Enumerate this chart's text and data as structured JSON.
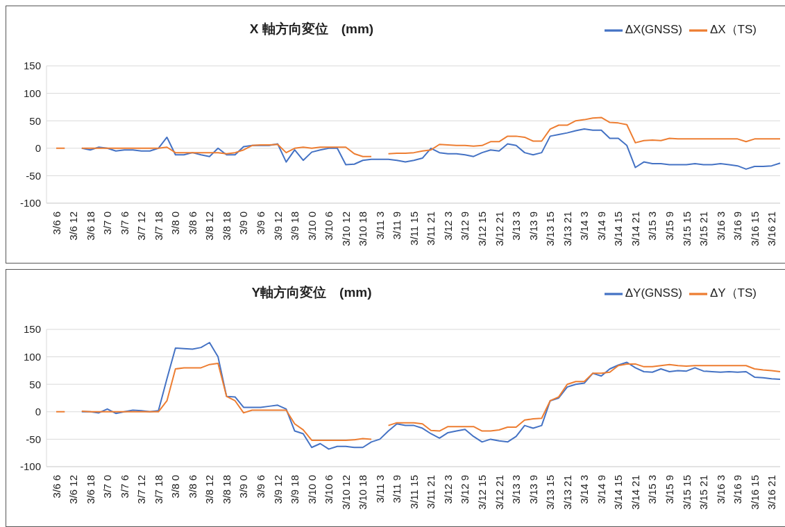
{
  "chart_data": [
    {
      "type": "line",
      "title": "X 軸方向変位　(mm)",
      "legend": "top right",
      "grid": "y",
      "marker": "none",
      "line_style": "solid",
      "categories": [
        "3/6 6",
        null,
        "3/6 12",
        null,
        "3/6 18",
        null,
        "3/7 0",
        null,
        "3/7 6",
        null,
        "3/7 12",
        null,
        "3/7 18",
        null,
        "3/8 0",
        null,
        "3/8 6",
        null,
        "3/8 12",
        null,
        "3/8 18",
        null,
        "3/9 0",
        null,
        "3/9 6",
        null,
        "3/9 12",
        null,
        "3/9 18",
        null,
        "3/10 0",
        null,
        "3/10 6",
        null,
        "3/10 12",
        null,
        "3/10 18",
        null,
        "3/11 3",
        null,
        "3/11 9",
        null,
        "3/11 15",
        null,
        "3/11 21",
        null,
        "3/12 3",
        null,
        "3/12 9",
        null,
        "3/12 15",
        null,
        "3/12 21",
        null,
        "3/13 3",
        null,
        "3/13 9",
        null,
        "3/13 15",
        null,
        "3/13 21",
        null,
        "3/14 3",
        null,
        "3/14 9",
        null,
        "3/14 15",
        null,
        "3/14 21",
        null,
        "3/15 3",
        null,
        "3/15 9",
        null,
        "3/15 15",
        null,
        "3/15 21",
        null,
        "3/16 3",
        null,
        "3/16 9",
        null,
        "3/16 15",
        null,
        "3/16 21",
        null
      ],
      "ylim": [
        -100,
        150
      ],
      "yticks": [
        -100,
        -50,
        0,
        50,
        100,
        150
      ],
      "series": [
        {
          "name": "ΔX(GNSS)",
          "color": "#4472c4",
          "values": [
            null,
            null,
            null,
            0,
            -3,
            2,
            0,
            -5,
            -3,
            -3,
            -5,
            -5,
            0,
            20,
            -12,
            -12,
            -8,
            -12,
            -15,
            0,
            -12,
            -12,
            3,
            5,
            5,
            5,
            8,
            -25,
            -3,
            -22,
            -7,
            -3,
            0,
            0,
            -30,
            -29,
            -22,
            -20,
            -20,
            -20,
            -22,
            -25,
            -22,
            -18,
            0,
            -8,
            -10,
            -10,
            -12,
            -15,
            -8,
            -3,
            -5,
            8,
            5,
            -8,
            -12,
            -8,
            22,
            25,
            28,
            32,
            35,
            33,
            33,
            18,
            18,
            5,
            -35,
            -25,
            -28,
            -28,
            -30,
            -30,
            -30,
            -28,
            -30,
            -30,
            -28,
            -30,
            -32,
            -38,
            -33,
            -33,
            -32,
            -27
          ]
        },
        {
          "name": "ΔX（TS)",
          "color": "#ed7d31",
          "values": [
            0,
            0,
            null,
            0,
            0,
            0,
            0,
            0,
            0,
            0,
            0,
            0,
            0,
            2,
            -8,
            -8,
            -8,
            -8,
            -8,
            -8,
            -10,
            -8,
            -3,
            5,
            6,
            6,
            7,
            -8,
            0,
            2,
            0,
            2,
            2,
            2,
            2,
            -10,
            -15,
            -15,
            null,
            -10,
            -9,
            -9,
            -8,
            -5,
            -3,
            7,
            6,
            5,
            5,
            4,
            5,
            12,
            12,
            22,
            22,
            20,
            13,
            13,
            35,
            42,
            42,
            50,
            52,
            55,
            56,
            47,
            46,
            43,
            10,
            14,
            15,
            14,
            18,
            17,
            17,
            17,
            17,
            17,
            17,
            17,
            17,
            12,
            17,
            17,
            17,
            17
          ]
        }
      ]
    },
    {
      "type": "line",
      "title": "Y軸方向変位　(mm)",
      "legend": "top right",
      "grid": "y",
      "marker": "none",
      "line_style": "solid",
      "categories": [
        "3/6 6",
        null,
        "3/6 12",
        null,
        "3/6 18",
        null,
        "3/7 0",
        null,
        "3/7 6",
        null,
        "3/7 12",
        null,
        "3/7 18",
        null,
        "3/8 0",
        null,
        "3/8 6",
        null,
        "3/8 12",
        null,
        "3/8 18",
        null,
        "3/9 0",
        null,
        "3/9 6",
        null,
        "3/9 12",
        null,
        "3/9 18",
        null,
        "3/10 0",
        null,
        "3/10 6",
        null,
        "3/10 12",
        null,
        "3/10 18",
        null,
        "3/11 3",
        null,
        "3/11 9",
        null,
        "3/11 15",
        null,
        "3/11 21",
        null,
        "3/12 3",
        null,
        "3/12 9",
        null,
        "3/12 15",
        null,
        "3/12 21",
        null,
        "3/13 3",
        null,
        "3/13 9",
        null,
        "3/13 15",
        null,
        "3/13 21",
        null,
        "3/14 3",
        null,
        "3/14 9",
        null,
        "3/14 15",
        null,
        "3/14 21",
        null,
        "3/15 3",
        null,
        "3/15 9",
        null,
        "3/15 15",
        null,
        "3/15 21",
        null,
        "3/16 3",
        null,
        "3/16 9",
        null,
        "3/16 15",
        null,
        "3/16 21",
        null
      ],
      "ylim": [
        -100,
        150
      ],
      "yticks": [
        -100,
        -50,
        0,
        50,
        100,
        150
      ],
      "series": [
        {
          "name": "ΔY(GNSS)",
          "color": "#4472c4",
          "values": [
            null,
            null,
            null,
            0,
            0,
            -2,
            5,
            -3,
            0,
            3,
            2,
            0,
            2,
            60,
            116,
            115,
            114,
            117,
            126,
            100,
            28,
            27,
            8,
            8,
            8,
            10,
            12,
            5,
            -35,
            -40,
            -65,
            -58,
            -68,
            -63,
            -63,
            -65,
            -65,
            -55,
            -50,
            -35,
            -22,
            -25,
            -25,
            -30,
            -40,
            -48,
            -38,
            -35,
            -32,
            -45,
            -55,
            -50,
            -53,
            -55,
            -45,
            -25,
            -30,
            -25,
            20,
            25,
            45,
            50,
            52,
            70,
            65,
            78,
            85,
            90,
            80,
            73,
            72,
            78,
            73,
            75,
            74,
            80,
            74,
            73,
            72,
            73,
            72,
            73,
            63,
            62,
            60,
            59
          ]
        },
        {
          "name": "ΔY（TS)",
          "color": "#ed7d31",
          "values": [
            0,
            0,
            null,
            1,
            0,
            0,
            0,
            0,
            0,
            0,
            0,
            0,
            0,
            20,
            78,
            80,
            80,
            80,
            86,
            88,
            28,
            20,
            -2,
            3,
            3,
            3,
            3,
            3,
            -22,
            -33,
            -52,
            -52,
            -52,
            -52,
            -52,
            -51,
            -49,
            -50,
            null,
            -25,
            -20,
            -20,
            -20,
            -22,
            -34,
            -35,
            -27,
            -27,
            -27,
            -27,
            -35,
            -35,
            -33,
            -28,
            -28,
            -15,
            -13,
            -12,
            20,
            27,
            50,
            55,
            55,
            70,
            70,
            72,
            84,
            87,
            87,
            82,
            82,
            84,
            86,
            84,
            83,
            84,
            84,
            84,
            84,
            84,
            84,
            84,
            78,
            76,
            75,
            73
          ]
        }
      ]
    }
  ]
}
